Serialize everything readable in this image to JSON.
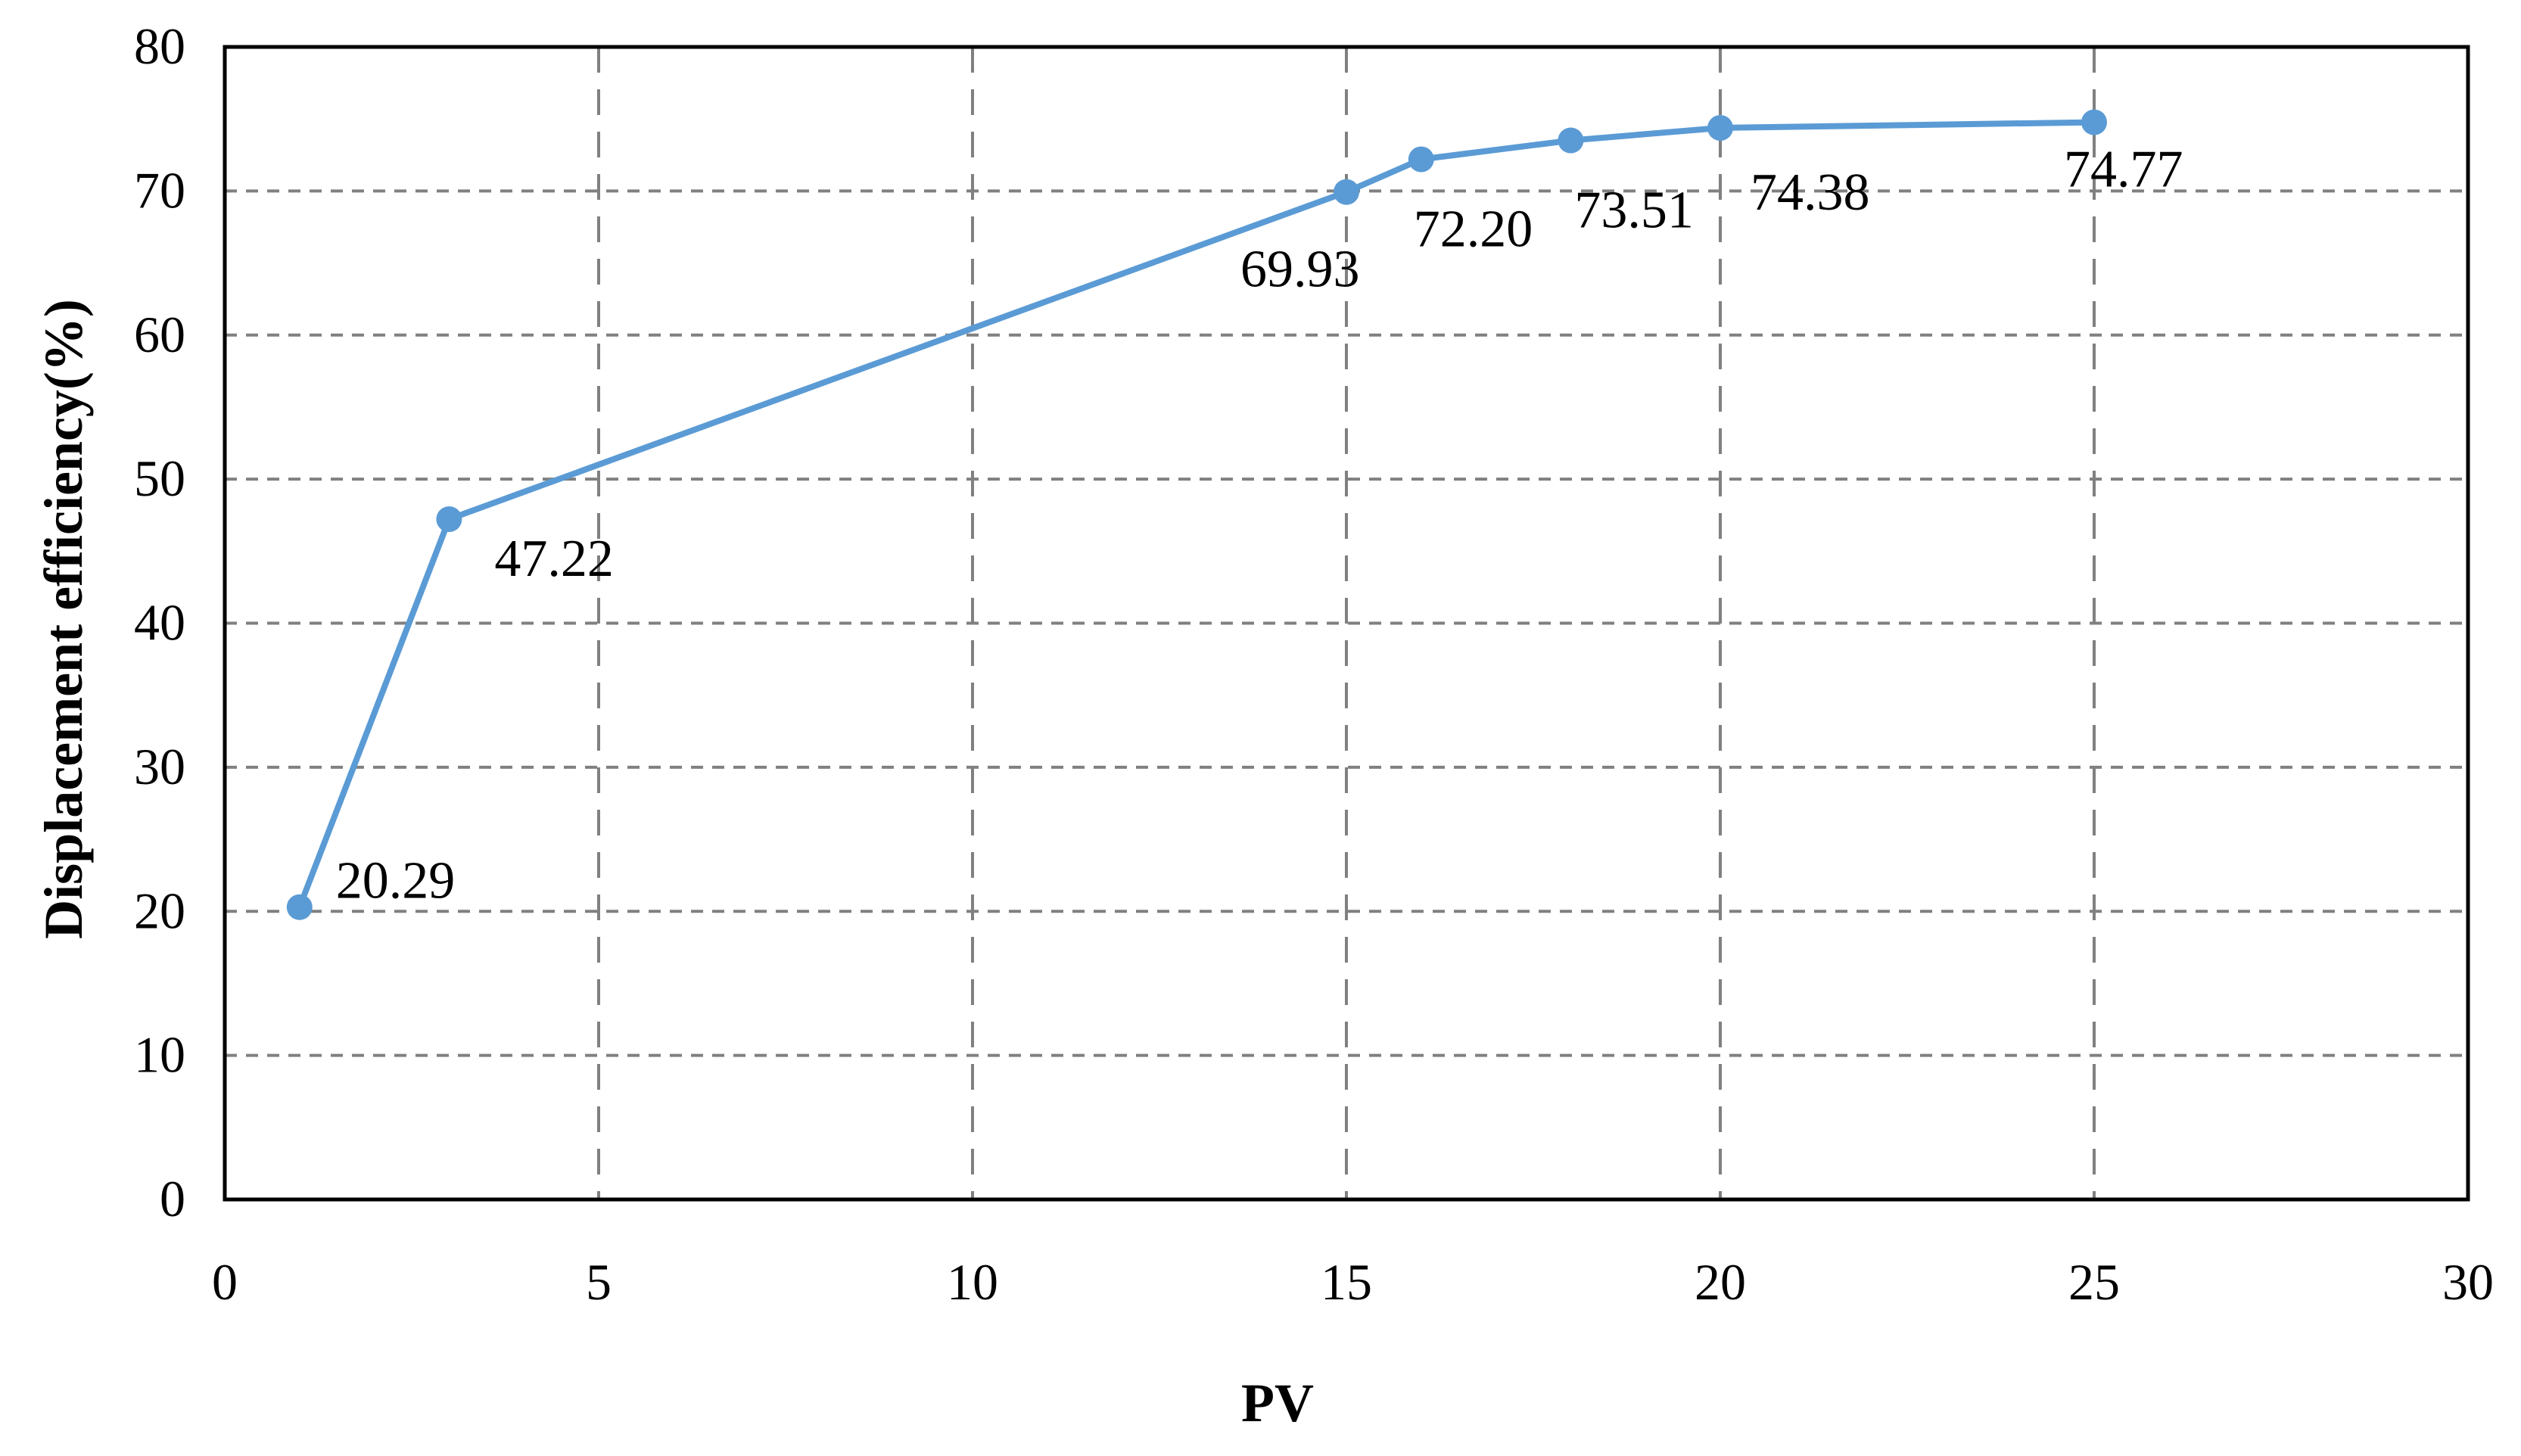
{
  "chart_data": {
    "type": "line",
    "title": "",
    "xlabel": "PV",
    "ylabel": "Displacement efficiency(%)",
    "xlim": [
      0,
      30
    ],
    "ylim": [
      0,
      80
    ],
    "xticks": [
      0,
      5,
      10,
      15,
      20,
      25,
      30
    ],
    "yticks": [
      0,
      10,
      20,
      30,
      40,
      50,
      60,
      70,
      80
    ],
    "grid": true,
    "grid_style": "dashed",
    "legend": null,
    "series": [
      {
        "name": "Displacement efficiency",
        "color": "#5b9bd5",
        "marker": "circle",
        "x": [
          1,
          3,
          15,
          16,
          18,
          20,
          25
        ],
        "values": [
          20.29,
          47.22,
          69.93,
          72.2,
          73.51,
          74.38,
          74.77
        ],
        "labels": [
          "20.29",
          "47.22",
          "69.93",
          "72.20",
          "73.51",
          "74.38",
          "74.77"
        ]
      }
    ]
  }
}
